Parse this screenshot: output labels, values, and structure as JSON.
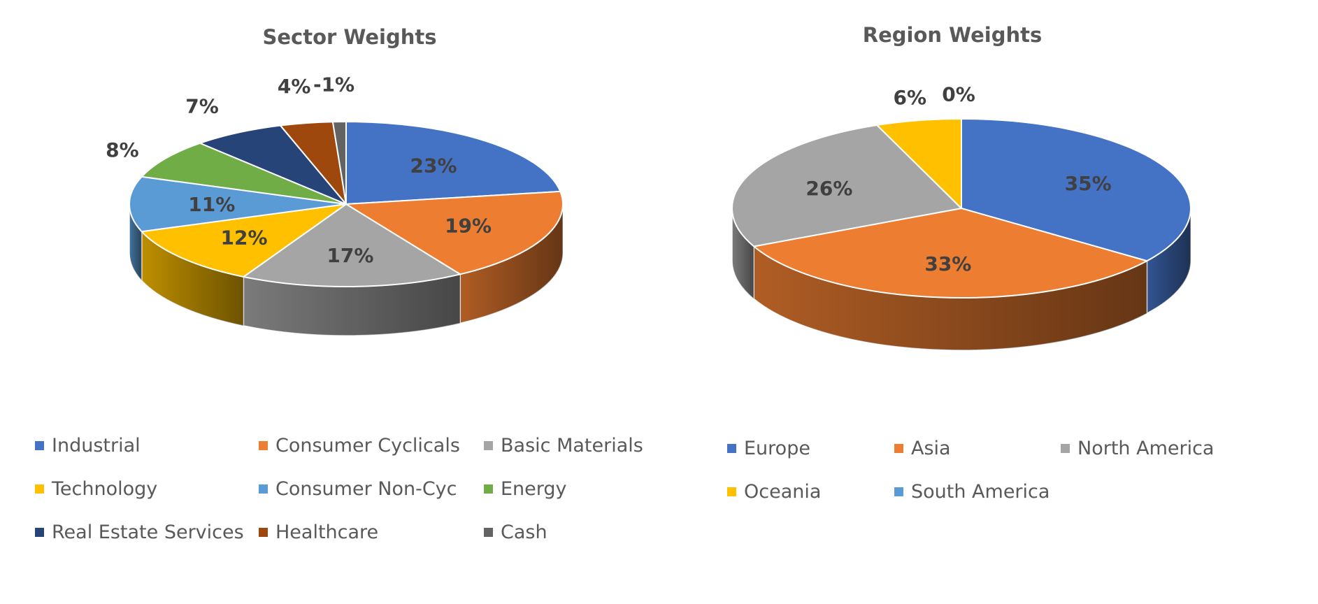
{
  "chart_data": [
    {
      "type": "pie",
      "title": "Sector Weights",
      "slices": [
        {
          "name": "Industrial",
          "value": 23,
          "label": "23%",
          "color": "#4472C4"
        },
        {
          "name": "Consumer Cyclicals",
          "value": 19,
          "label": "19%",
          "color": "#ED7D31"
        },
        {
          "name": "Basic Materials",
          "value": 17,
          "label": "17%",
          "color": "#A5A5A5"
        },
        {
          "name": "Technology",
          "value": 12,
          "label": "12%",
          "color": "#FFC000"
        },
        {
          "name": "Consumer Non-Cyc",
          "value": 11,
          "label": "11%",
          "color": "#5B9BD5"
        },
        {
          "name": "Energy",
          "value": 8,
          "label": "8%",
          "color": "#70AD47"
        },
        {
          "name": "Real Estate Services",
          "value": 7,
          "label": "7%",
          "color": "#264478"
        },
        {
          "name": "Healthcare",
          "value": 4,
          "label": "4%",
          "color": "#9E480E"
        },
        {
          "name": "Cash",
          "value": -1,
          "label": "-1%",
          "color": "#636363"
        }
      ],
      "legend_position": "bottom"
    },
    {
      "type": "pie",
      "title": "Region Weights",
      "slices": [
        {
          "name": "Europe",
          "value": 35,
          "label": "35%",
          "color": "#4472C4"
        },
        {
          "name": "Asia",
          "value": 33,
          "label": "33%",
          "color": "#ED7D31"
        },
        {
          "name": "North America",
          "value": 26,
          "label": "26%",
          "color": "#A5A5A5"
        },
        {
          "name": "Oceania",
          "value": 6,
          "label": "6%",
          "color": "#FFC000"
        },
        {
          "name": "South America",
          "value": 0,
          "label": "0%",
          "color": "#5B9BD5"
        }
      ],
      "legend_position": "bottom"
    }
  ]
}
